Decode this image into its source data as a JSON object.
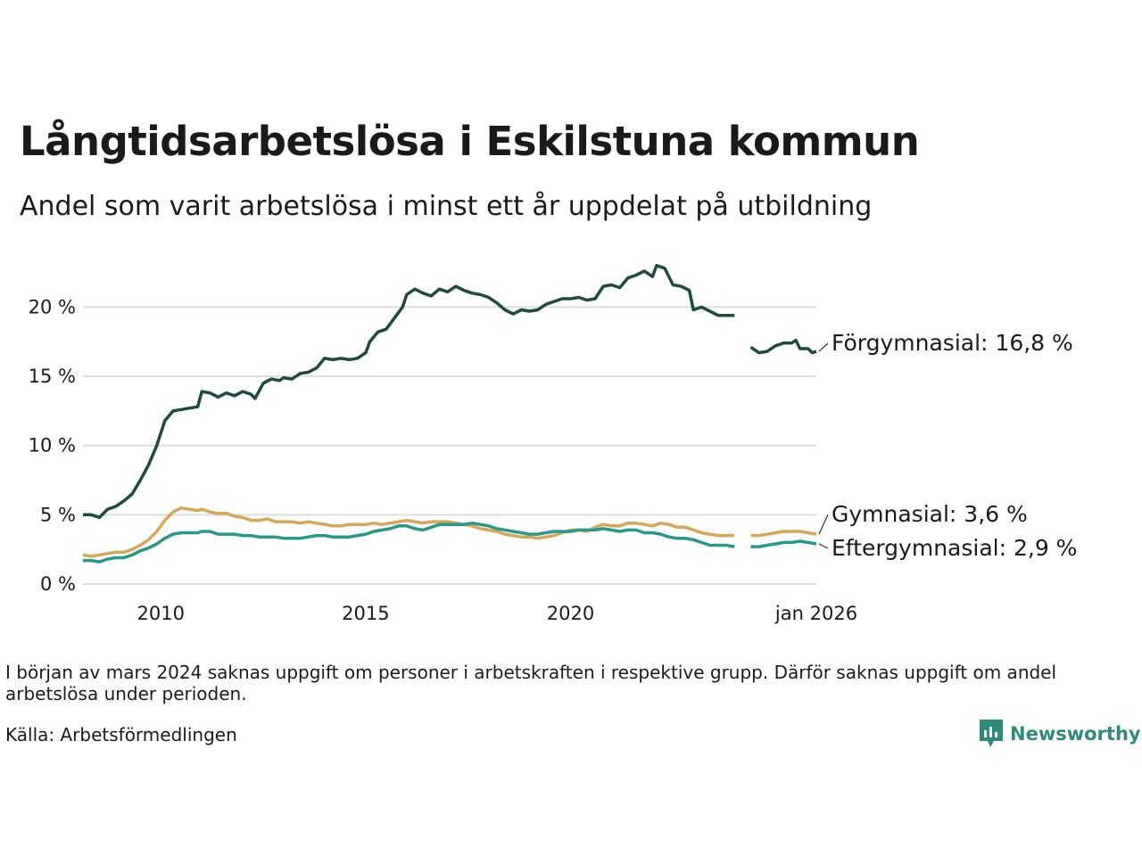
{
  "header": {
    "title": "Långtidsarbetslösa i Eskilstuna kommun",
    "subtitle": "Andel som varit arbetslösa i minst ett år uppdelat på utbildning"
  },
  "footer": {
    "note": "I början av mars 2024 saknas uppgift om personer i arbetskraften i respektive grupp. Därför saknas uppgift om andel arbetslösa under perioden.",
    "source": "Källa: Arbetsförmedlingen",
    "brand": "Newsworthy"
  },
  "colors": {
    "forgymnasial": "#1f4a40",
    "gymnasial": "#d4a857",
    "eftergymnasial": "#26998a",
    "grid": "#dddddd",
    "brand": "#2e8b7a"
  },
  "chart_data": {
    "type": "line",
    "title": "Långtidsarbetslösa i Eskilstuna kommun",
    "ylabel": "",
    "xlabel": "",
    "ylim": [
      0,
      23.5
    ],
    "xlim": [
      2008.1,
      2026.0
    ],
    "y_ticks": [
      {
        "value": 0,
        "label": "0 %"
      },
      {
        "value": 5,
        "label": "5 %"
      },
      {
        "value": 10,
        "label": "10 %"
      },
      {
        "value": 15,
        "label": "15 %"
      },
      {
        "value": 20,
        "label": "20 %"
      }
    ],
    "x_ticks": [
      {
        "value": 2010,
        "label": "2010"
      },
      {
        "value": 2015,
        "label": "2015"
      },
      {
        "value": 2020,
        "label": "2020"
      },
      {
        "value": 2026,
        "label": "jan 2026"
      }
    ],
    "gap": [
      2024.0,
      2024.4
    ],
    "series": [
      {
        "name": "Förgymnasial",
        "label": "Förgymnasial: 16,8 %",
        "color_key": "forgymnasial",
        "points": [
          [
            2008.1,
            5.0
          ],
          [
            2008.3,
            5.0
          ],
          [
            2008.5,
            4.8
          ],
          [
            2008.7,
            5.4
          ],
          [
            2008.9,
            5.6
          ],
          [
            2009.1,
            6.0
          ],
          [
            2009.3,
            6.5
          ],
          [
            2009.5,
            7.5
          ],
          [
            2009.7,
            8.6
          ],
          [
            2009.9,
            10.0
          ],
          [
            2010.1,
            11.8
          ],
          [
            2010.3,
            12.5
          ],
          [
            2010.5,
            12.6
          ],
          [
            2010.7,
            12.7
          ],
          [
            2010.9,
            12.8
          ],
          [
            2011.0,
            13.9
          ],
          [
            2011.2,
            13.8
          ],
          [
            2011.4,
            13.5
          ],
          [
            2011.6,
            13.8
          ],
          [
            2011.8,
            13.6
          ],
          [
            2012.0,
            13.9
          ],
          [
            2012.2,
            13.7
          ],
          [
            2012.3,
            13.4
          ],
          [
            2012.5,
            14.5
          ],
          [
            2012.7,
            14.8
          ],
          [
            2012.9,
            14.7
          ],
          [
            2013.0,
            14.9
          ],
          [
            2013.2,
            14.8
          ],
          [
            2013.4,
            15.2
          ],
          [
            2013.6,
            15.3
          ],
          [
            2013.8,
            15.6
          ],
          [
            2014.0,
            16.3
          ],
          [
            2014.2,
            16.2
          ],
          [
            2014.4,
            16.3
          ],
          [
            2014.6,
            16.2
          ],
          [
            2014.8,
            16.3
          ],
          [
            2015.0,
            16.7
          ],
          [
            2015.1,
            17.5
          ],
          [
            2015.3,
            18.2
          ],
          [
            2015.5,
            18.4
          ],
          [
            2015.7,
            19.2
          ],
          [
            2015.9,
            20.0
          ],
          [
            2016.0,
            20.9
          ],
          [
            2016.2,
            21.3
          ],
          [
            2016.4,
            21.0
          ],
          [
            2016.6,
            20.8
          ],
          [
            2016.8,
            21.3
          ],
          [
            2017.0,
            21.1
          ],
          [
            2017.2,
            21.5
          ],
          [
            2017.4,
            21.2
          ],
          [
            2017.6,
            21.0
          ],
          [
            2017.8,
            20.9
          ],
          [
            2018.0,
            20.7
          ],
          [
            2018.2,
            20.3
          ],
          [
            2018.4,
            19.8
          ],
          [
            2018.6,
            19.5
          ],
          [
            2018.8,
            19.8
          ],
          [
            2019.0,
            19.7
          ],
          [
            2019.2,
            19.8
          ],
          [
            2019.4,
            20.2
          ],
          [
            2019.6,
            20.4
          ],
          [
            2019.8,
            20.6
          ],
          [
            2020.0,
            20.6
          ],
          [
            2020.2,
            20.7
          ],
          [
            2020.4,
            20.5
          ],
          [
            2020.6,
            20.6
          ],
          [
            2020.8,
            21.5
          ],
          [
            2021.0,
            21.6
          ],
          [
            2021.2,
            21.4
          ],
          [
            2021.4,
            22.1
          ],
          [
            2021.6,
            22.3
          ],
          [
            2021.8,
            22.6
          ],
          [
            2022.0,
            22.2
          ],
          [
            2022.1,
            23.0
          ],
          [
            2022.3,
            22.8
          ],
          [
            2022.5,
            21.6
          ],
          [
            2022.7,
            21.5
          ],
          [
            2022.9,
            21.2
          ],
          [
            2023.0,
            19.8
          ],
          [
            2023.2,
            20.0
          ],
          [
            2023.4,
            19.7
          ],
          [
            2023.6,
            19.4
          ],
          [
            2023.8,
            19.4
          ],
          [
            2024.0,
            19.4
          ],
          null,
          [
            2024.4,
            17.1
          ],
          [
            2024.6,
            16.7
          ],
          [
            2024.8,
            16.8
          ],
          [
            2025.0,
            17.2
          ],
          [
            2025.2,
            17.4
          ],
          [
            2025.4,
            17.4
          ],
          [
            2025.5,
            17.6
          ],
          [
            2025.6,
            17.0
          ],
          [
            2025.8,
            17.0
          ],
          [
            2025.9,
            16.7
          ],
          [
            2026.0,
            16.8
          ]
        ]
      },
      {
        "name": "Gymnasial",
        "label": "Gymnasial:  3,6 %",
        "color_key": "gymnasial",
        "points": [
          [
            2008.1,
            2.1
          ],
          [
            2008.3,
            2.0
          ],
          [
            2008.5,
            2.1
          ],
          [
            2008.7,
            2.2
          ],
          [
            2008.9,
            2.3
          ],
          [
            2009.1,
            2.3
          ],
          [
            2009.3,
            2.5
          ],
          [
            2009.5,
            2.8
          ],
          [
            2009.7,
            3.2
          ],
          [
            2009.9,
            3.8
          ],
          [
            2010.1,
            4.6
          ],
          [
            2010.3,
            5.2
          ],
          [
            2010.5,
            5.5
          ],
          [
            2010.7,
            5.4
          ],
          [
            2010.9,
            5.3
          ],
          [
            2011.0,
            5.4
          ],
          [
            2011.2,
            5.2
          ],
          [
            2011.4,
            5.1
          ],
          [
            2011.6,
            5.1
          ],
          [
            2011.8,
            4.9
          ],
          [
            2012.0,
            4.8
          ],
          [
            2012.2,
            4.6
          ],
          [
            2012.4,
            4.6
          ],
          [
            2012.6,
            4.7
          ],
          [
            2012.8,
            4.5
          ],
          [
            2013.0,
            4.5
          ],
          [
            2013.2,
            4.5
          ],
          [
            2013.4,
            4.4
          ],
          [
            2013.6,
            4.5
          ],
          [
            2013.8,
            4.4
          ],
          [
            2014.0,
            4.3
          ],
          [
            2014.2,
            4.2
          ],
          [
            2014.4,
            4.2
          ],
          [
            2014.6,
            4.3
          ],
          [
            2014.8,
            4.3
          ],
          [
            2015.0,
            4.3
          ],
          [
            2015.2,
            4.4
          ],
          [
            2015.4,
            4.3
          ],
          [
            2015.6,
            4.4
          ],
          [
            2015.8,
            4.5
          ],
          [
            2016.0,
            4.6
          ],
          [
            2016.2,
            4.5
          ],
          [
            2016.4,
            4.4
          ],
          [
            2016.6,
            4.5
          ],
          [
            2016.8,
            4.5
          ],
          [
            2017.0,
            4.5
          ],
          [
            2017.2,
            4.4
          ],
          [
            2017.4,
            4.3
          ],
          [
            2017.6,
            4.2
          ],
          [
            2017.8,
            4.0
          ],
          [
            2018.0,
            3.9
          ],
          [
            2018.2,
            3.8
          ],
          [
            2018.4,
            3.6
          ],
          [
            2018.6,
            3.5
          ],
          [
            2018.8,
            3.4
          ],
          [
            2019.0,
            3.4
          ],
          [
            2019.2,
            3.3
          ],
          [
            2019.4,
            3.4
          ],
          [
            2019.6,
            3.5
          ],
          [
            2019.8,
            3.7
          ],
          [
            2020.0,
            3.9
          ],
          [
            2020.2,
            3.9
          ],
          [
            2020.4,
            3.8
          ],
          [
            2020.6,
            4.1
          ],
          [
            2020.8,
            4.3
          ],
          [
            2021.0,
            4.2
          ],
          [
            2021.2,
            4.2
          ],
          [
            2021.4,
            4.4
          ],
          [
            2021.6,
            4.4
          ],
          [
            2021.8,
            4.3
          ],
          [
            2022.0,
            4.2
          ],
          [
            2022.2,
            4.4
          ],
          [
            2022.4,
            4.3
          ],
          [
            2022.6,
            4.1
          ],
          [
            2022.8,
            4.1
          ],
          [
            2023.0,
            3.9
          ],
          [
            2023.2,
            3.7
          ],
          [
            2023.4,
            3.6
          ],
          [
            2023.6,
            3.5
          ],
          [
            2023.8,
            3.5
          ],
          [
            2024.0,
            3.5
          ],
          null,
          [
            2024.4,
            3.5
          ],
          [
            2024.6,
            3.5
          ],
          [
            2024.8,
            3.6
          ],
          [
            2025.0,
            3.7
          ],
          [
            2025.2,
            3.8
          ],
          [
            2025.4,
            3.8
          ],
          [
            2025.6,
            3.8
          ],
          [
            2025.8,
            3.7
          ],
          [
            2026.0,
            3.6
          ]
        ]
      },
      {
        "name": "Eftergymnasial",
        "label": "Eftergymnasial:  2,9 %",
        "color_key": "eftergymnasial",
        "points": [
          [
            2008.1,
            1.7
          ],
          [
            2008.3,
            1.7
          ],
          [
            2008.5,
            1.6
          ],
          [
            2008.7,
            1.8
          ],
          [
            2008.9,
            1.9
          ],
          [
            2009.1,
            1.9
          ],
          [
            2009.3,
            2.1
          ],
          [
            2009.5,
            2.4
          ],
          [
            2009.7,
            2.6
          ],
          [
            2009.9,
            2.9
          ],
          [
            2010.1,
            3.3
          ],
          [
            2010.3,
            3.6
          ],
          [
            2010.5,
            3.7
          ],
          [
            2010.7,
            3.7
          ],
          [
            2010.9,
            3.7
          ],
          [
            2011.0,
            3.8
          ],
          [
            2011.2,
            3.8
          ],
          [
            2011.4,
            3.6
          ],
          [
            2011.6,
            3.6
          ],
          [
            2011.8,
            3.6
          ],
          [
            2012.0,
            3.5
          ],
          [
            2012.2,
            3.5
          ],
          [
            2012.4,
            3.4
          ],
          [
            2012.6,
            3.4
          ],
          [
            2012.8,
            3.4
          ],
          [
            2013.0,
            3.3
          ],
          [
            2013.2,
            3.3
          ],
          [
            2013.4,
            3.3
          ],
          [
            2013.6,
            3.4
          ],
          [
            2013.8,
            3.5
          ],
          [
            2014.0,
            3.5
          ],
          [
            2014.2,
            3.4
          ],
          [
            2014.4,
            3.4
          ],
          [
            2014.6,
            3.4
          ],
          [
            2014.8,
            3.5
          ],
          [
            2015.0,
            3.6
          ],
          [
            2015.2,
            3.8
          ],
          [
            2015.4,
            3.9
          ],
          [
            2015.6,
            4.0
          ],
          [
            2015.8,
            4.2
          ],
          [
            2016.0,
            4.2
          ],
          [
            2016.2,
            4.0
          ],
          [
            2016.4,
            3.9
          ],
          [
            2016.6,
            4.1
          ],
          [
            2016.8,
            4.3
          ],
          [
            2017.0,
            4.3
          ],
          [
            2017.2,
            4.3
          ],
          [
            2017.4,
            4.3
          ],
          [
            2017.6,
            4.4
          ],
          [
            2017.8,
            4.3
          ],
          [
            2018.0,
            4.2
          ],
          [
            2018.2,
            4.0
          ],
          [
            2018.4,
            3.9
          ],
          [
            2018.6,
            3.8
          ],
          [
            2018.8,
            3.7
          ],
          [
            2019.0,
            3.6
          ],
          [
            2019.2,
            3.6
          ],
          [
            2019.4,
            3.7
          ],
          [
            2019.6,
            3.8
          ],
          [
            2019.8,
            3.8
          ],
          [
            2020.0,
            3.8
          ],
          [
            2020.2,
            3.9
          ],
          [
            2020.4,
            3.9
          ],
          [
            2020.6,
            3.9
          ],
          [
            2020.8,
            4.0
          ],
          [
            2021.0,
            3.9
          ],
          [
            2021.2,
            3.8
          ],
          [
            2021.4,
            3.9
          ],
          [
            2021.6,
            3.9
          ],
          [
            2021.8,
            3.7
          ],
          [
            2022.0,
            3.7
          ],
          [
            2022.2,
            3.6
          ],
          [
            2022.4,
            3.4
          ],
          [
            2022.6,
            3.3
          ],
          [
            2022.8,
            3.3
          ],
          [
            2023.0,
            3.2
          ],
          [
            2023.2,
            3.0
          ],
          [
            2023.4,
            2.8
          ],
          [
            2023.6,
            2.8
          ],
          [
            2023.8,
            2.8
          ],
          [
            2024.0,
            2.7
          ],
          null,
          [
            2024.4,
            2.7
          ],
          [
            2024.6,
            2.7
          ],
          [
            2024.8,
            2.8
          ],
          [
            2025.0,
            2.9
          ],
          [
            2025.2,
            3.0
          ],
          [
            2025.4,
            3.0
          ],
          [
            2025.6,
            3.1
          ],
          [
            2025.8,
            3.0
          ],
          [
            2026.0,
            2.9
          ]
        ]
      }
    ]
  }
}
